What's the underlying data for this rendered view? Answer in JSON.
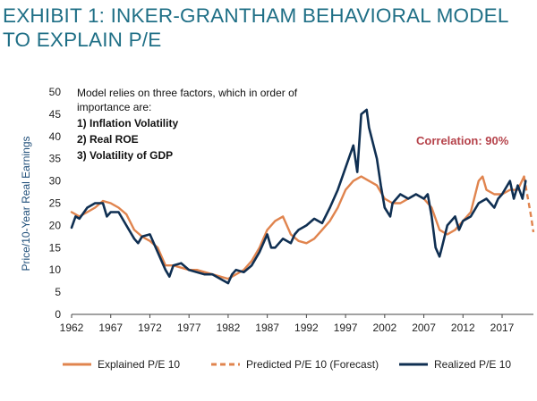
{
  "header": {
    "title": "EXHIBIT 1: INKER-GRANTHAM BEHAVIORAL MODEL TO EXPLAIN P/E"
  },
  "colors": {
    "title": "#1f6f86",
    "explained": "#e0844e",
    "predicted": "#e0844e",
    "realized": "#0f2f52",
    "correlation": "#b5424a"
  },
  "chart_data": {
    "type": "line",
    "title": "",
    "xlabel": "",
    "ylabel": "Price/10-Year Real Earnings",
    "xlim": [
      1962,
      2021
    ],
    "ylim": [
      0,
      50
    ],
    "xticks": [
      1962,
      1967,
      1972,
      1977,
      1982,
      1987,
      1992,
      1997,
      2002,
      2007,
      2012,
      2017
    ],
    "xtick_labels": [
      "1962",
      "1967",
      "1972",
      "1977",
      "1982",
      "1987",
      "1992",
      "1997",
      "2002",
      "2007",
      "2012",
      "2017"
    ],
    "yticks": [
      0,
      5,
      10,
      15,
      20,
      25,
      30,
      35,
      40,
      45,
      50
    ],
    "ytick_labels": [
      "0",
      "5",
      "10",
      "15",
      "20",
      "25",
      "30",
      "35",
      "40",
      "45",
      "50"
    ],
    "grid": false,
    "legend_position": "bottom",
    "annotations": {
      "intro_line1": "Model relies on three factors, which in order of",
      "intro_line2": "importance are:",
      "factor1": "1) Inflation Volatility",
      "factor2": "2) Real ROE",
      "factor3": "3) Volatility of GDP",
      "correlation": "Correlation: 90%"
    },
    "series": [
      {
        "name": "Explained P/E 10",
        "style": "solid",
        "x": [
          1962,
          1963,
          1964,
          1965,
          1966,
          1967,
          1968,
          1969,
          1970,
          1971,
          1972,
          1973,
          1974,
          1975,
          1976,
          1977,
          1978,
          1979,
          1980,
          1981,
          1982,
          1983,
          1984,
          1985,
          1986,
          1987,
          1988,
          1989,
          1990,
          1991,
          1992,
          1993,
          1994,
          1995,
          1996,
          1997,
          1998,
          1999,
          2000,
          2001,
          2002,
          2003,
          2004,
          2005,
          2006,
          2007,
          2008,
          2009,
          2010,
          2011,
          2012,
          2013,
          2014,
          2014.5,
          2015,
          2016,
          2017,
          2018,
          2019,
          2019.8
        ],
        "y": [
          23,
          22,
          23,
          24,
          25.5,
          25,
          24,
          22.5,
          19,
          17.5,
          16.5,
          15,
          11,
          11,
          10.5,
          10,
          10,
          9.5,
          9,
          8.5,
          8,
          9,
          10,
          12,
          15,
          19,
          21,
          22,
          18,
          16.5,
          16,
          17,
          19,
          21,
          24,
          28,
          30,
          31,
          30,
          29,
          26,
          25,
          25,
          26,
          27,
          26,
          24,
          19,
          18,
          19,
          21,
          23,
          30,
          31,
          28,
          27,
          27,
          28,
          28,
          31
        ]
      },
      {
        "name": "Predicted P/E 10 (Forecast)",
        "style": "dashed",
        "x": [
          2019.8,
          2020.1,
          2020.4,
          2020.7,
          2021.0
        ],
        "y": [
          31,
          28,
          25,
          22,
          18.5
        ]
      },
      {
        "name": "Realized P/E 10",
        "style": "solid",
        "x": [
          1962,
          1962.5,
          1963,
          1964,
          1965,
          1966,
          1966.5,
          1967,
          1968,
          1969,
          1970,
          1970.5,
          1971,
          1972,
          1973,
          1974,
          1974.5,
          1975,
          1976,
          1977,
          1978,
          1979,
          1980,
          1981,
          1982,
          1982.5,
          1983,
          1984,
          1985,
          1986,
          1987,
          1987.5,
          1988,
          1989,
          1990,
          1990.5,
          1991,
          1992,
          1993,
          1994,
          1995,
          1996,
          1997,
          1998,
          1998.5,
          1999,
          1999.7,
          2000,
          2001,
          2001.5,
          2002,
          2002.7,
          2003,
          2004,
          2005,
          2006,
          2007,
          2007.5,
          2008,
          2008.5,
          2009,
          2009.3,
          2010,
          2011,
          2011.5,
          2012,
          2013,
          2014,
          2015,
          2016,
          2016.5,
          2017,
          2018,
          2018.5,
          2019,
          2019.6,
          2020
        ],
        "y": [
          19.5,
          22,
          21.5,
          24,
          25,
          25,
          22,
          23,
          23,
          20,
          17,
          16,
          17.5,
          18,
          14,
          10,
          8.5,
          11,
          11.5,
          10,
          9.5,
          9,
          9,
          8,
          7,
          9,
          10,
          9.5,
          11,
          14,
          18,
          15,
          15,
          17,
          16,
          18,
          19,
          20,
          21.5,
          20.5,
          24,
          28,
          33,
          38,
          32,
          45,
          46,
          42,
          35,
          29,
          24,
          22,
          25,
          27,
          26,
          27,
          26,
          27,
          22,
          15,
          13,
          15,
          20,
          22,
          19,
          21,
          22,
          25,
          26,
          24,
          26,
          27,
          30,
          26,
          29,
          26,
          30
        ]
      }
    ]
  }
}
